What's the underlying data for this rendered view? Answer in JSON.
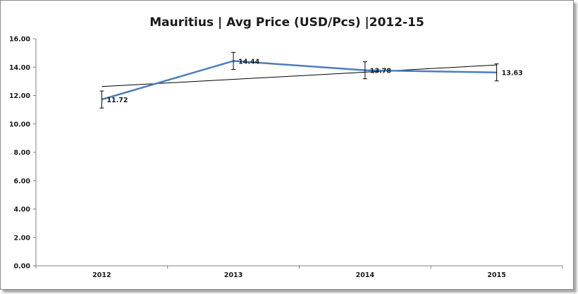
{
  "chart_data": {
    "type": "line",
    "title": "Mauritius | Avg Price (USD/Pcs) |2012-15",
    "xlabel": "",
    "ylabel": "",
    "categories": [
      "2012",
      "2013",
      "2014",
      "2015"
    ],
    "series": [
      {
        "values": [
          11.72,
          14.44,
          13.78,
          13.63
        ],
        "data_labels": [
          "11.72",
          "14.44",
          "13.78",
          "13.63"
        ],
        "color": "#4a7ebb",
        "error_bar": 0.6
      }
    ],
    "trendline": {
      "type": "linear",
      "color": "#000000"
    },
    "ylim": [
      0,
      16
    ],
    "yticks": [
      "0.00",
      "2.00",
      "4.00",
      "6.00",
      "8.00",
      "10.00",
      "12.00",
      "14.00",
      "16.00"
    ],
    "grid": false,
    "legend": "none"
  }
}
